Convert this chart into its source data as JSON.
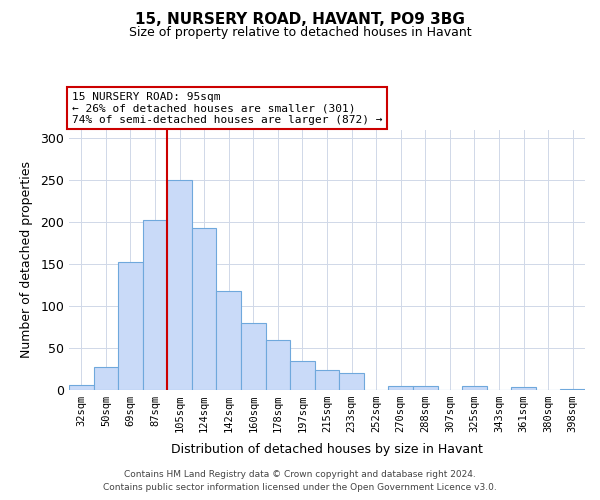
{
  "title": "15, NURSERY ROAD, HAVANT, PO9 3BG",
  "subtitle": "Size of property relative to detached houses in Havant",
  "xlabel": "Distribution of detached houses by size in Havant",
  "ylabel": "Number of detached properties",
  "bar_labels": [
    "32sqm",
    "50sqm",
    "69sqm",
    "87sqm",
    "105sqm",
    "124sqm",
    "142sqm",
    "160sqm",
    "178sqm",
    "197sqm",
    "215sqm",
    "233sqm",
    "252sqm",
    "270sqm",
    "288sqm",
    "307sqm",
    "325sqm",
    "343sqm",
    "361sqm",
    "380sqm",
    "398sqm"
  ],
  "bar_values": [
    6,
    27,
    153,
    203,
    250,
    193,
    118,
    80,
    60,
    35,
    24,
    20,
    0,
    5,
    5,
    0,
    5,
    0,
    4,
    0,
    1
  ],
  "bar_color": "#c9daf8",
  "bar_edge_color": "#6fa8dc",
  "vline_x": 4.0,
  "vline_color": "#cc0000",
  "annotation_line1": "15 NURSERY ROAD: 95sqm",
  "annotation_line2": "← 26% of detached houses are smaller (301)",
  "annotation_line3": "74% of semi-detached houses are larger (872) →",
  "ylim": [
    0,
    310
  ],
  "yticks": [
    0,
    50,
    100,
    150,
    200,
    250,
    300
  ],
  "footer_line1": "Contains HM Land Registry data © Crown copyright and database right 2024.",
  "footer_line2": "Contains public sector information licensed under the Open Government Licence v3.0.",
  "background_color": "#ffffff",
  "grid_color": "#d0d8e8"
}
